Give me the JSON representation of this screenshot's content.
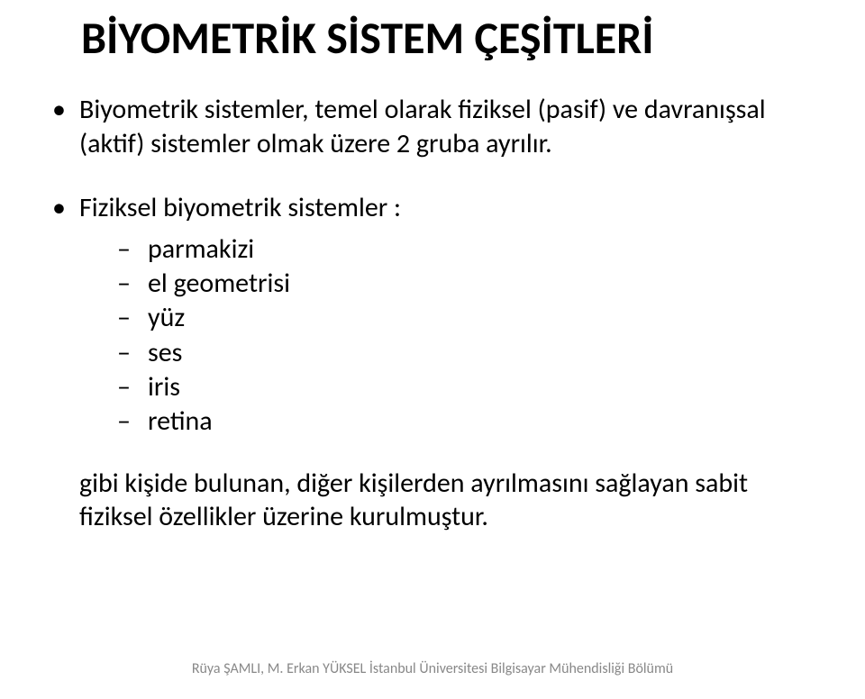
{
  "title": "BİYOMETRİK SİSTEM ÇEŞİTLERİ",
  "bullets": {
    "b1": "Biyometrik sistemler, temel olarak fiziksel (pasif) ve davranışsal (aktif) sistemler olmak üzere 2 gruba ayrılır.",
    "b2": "Fiziksel biyometrik sistemler :",
    "sub": {
      "s1": "parmakizi",
      "s2": "el geometrisi",
      "s3": "yüz",
      "s4": "ses",
      "s5": "iris",
      "s6": "retina"
    },
    "after": "gibi kişide bulunan, diğer kişilerden ayrılmasını sağlayan sabit fiziksel özellikler üzerine kurulmuştur."
  },
  "footer": "Rüya ŞAMLI, M. Erkan YÜKSEL İstanbul Üniversitesi Bilgisayar Mühendisliği Bölümü"
}
